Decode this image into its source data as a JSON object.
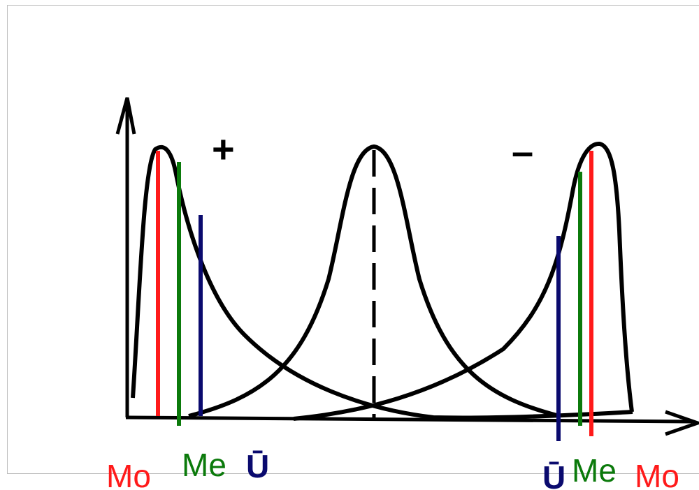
{
  "signs": {
    "left": "+",
    "right": "–"
  },
  "labels": {
    "mode": "Mo",
    "median": "Me",
    "mean": "Ū"
  },
  "colors": {
    "mode": "#ff1a1a",
    "median": "#0b7a0b",
    "mean": "#0a0a6e",
    "curve": "#000000",
    "frame": "#bdbdbd"
  }
}
